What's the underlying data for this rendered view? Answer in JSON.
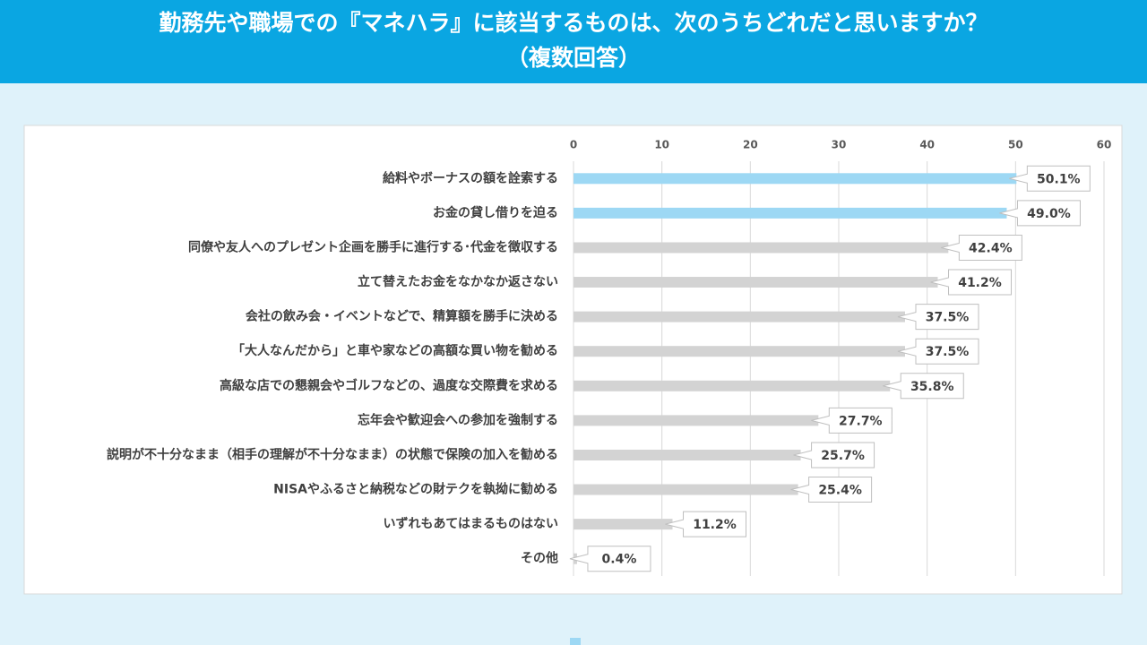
{
  "chart_data": {
    "type": "bar",
    "orientation": "horizontal",
    "title": "勤務先や職場での『マネハラ』に該当するものは、次のうちどれだと思いますか？",
    "subtitle": "（複数回答）",
    "categories": [
      "給料やボーナスの額を詮索する",
      "お金の貸し借りを迫る",
      "同僚や友人へのプレゼント企画を勝手に進行する･代金を徴収する",
      "立て替えたお金をなかなか返さない",
      "会社の飲み会・イベントなどで、精算額を勝手に決める",
      "「大人なんだから」と車や家などの高額な買い物を勧める",
      "高級な店での懇親会やゴルフなどの、過度な交際費を求める",
      "忘年会や歓迎会への参加を強制する",
      "説明が不十分なまま（相手の理解が不十分なまま）の状態で保険の加入を勧める",
      "NISAやふるさと納税などの財テクを執拗に勧める",
      "いずれもあてはまるものはない",
      "その他"
    ],
    "values": [
      50.1,
      49.0,
      42.4,
      41.2,
      37.5,
      37.5,
      35.8,
      27.7,
      25.7,
      25.4,
      11.2,
      0.4
    ],
    "value_labels": [
      "50.1%",
      "49.0%",
      "42.4%",
      "41.2%",
      "37.5%",
      "37.5%",
      "35.8%",
      "27.7%",
      "25.7%",
      "25.4%",
      "11.2%",
      "0.4%"
    ],
    "colors": [
      "#9dd8f4",
      "#9dd8f4",
      "#d3d3d3",
      "#d3d3d3",
      "#d3d3d3",
      "#d3d3d3",
      "#d3d3d3",
      "#d3d3d3",
      "#d3d3d3",
      "#d3d3d3",
      "#d3d3d3",
      "#d3d3d3"
    ],
    "xlim": [
      0,
      60
    ],
    "xticks": [
      0,
      10,
      20,
      30,
      40,
      50,
      60
    ],
    "grid": true
  }
}
